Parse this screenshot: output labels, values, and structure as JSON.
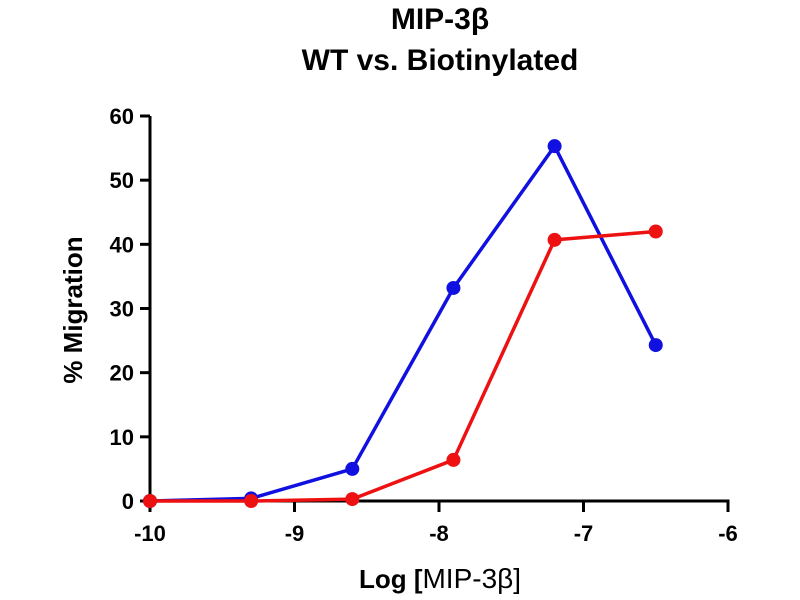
{
  "chart_data": {
    "type": "line",
    "title_line1": "MIP-3β",
    "title_line2": "WT vs. Biotinylated",
    "xlabel_bold": "Log [",
    "xlabel_normal": "MIP-3β]",
    "ylabel": "% Migration",
    "xlim": [
      -10,
      -6
    ],
    "ylim": [
      0,
      60
    ],
    "x_ticks": [
      "-10",
      "-9",
      "-8",
      "-7",
      "-6"
    ],
    "y_ticks": [
      "0",
      "10",
      "20",
      "30",
      "40",
      "50",
      "60"
    ],
    "grid": false,
    "legend": "none",
    "series": [
      {
        "color": "#1010e0",
        "x": [
          -10,
          -9.3,
          -8.6,
          -7.9,
          -7.2,
          -6.5
        ],
        "y": [
          0,
          0.4,
          5,
          33.2,
          55.3,
          24.3
        ]
      },
      {
        "color": "#ee1111",
        "x": [
          -10,
          -9.3,
          -8.6,
          -7.9,
          -7.2,
          -6.5
        ],
        "y": [
          0,
          0,
          0.3,
          6.4,
          40.7,
          42
        ]
      }
    ]
  }
}
